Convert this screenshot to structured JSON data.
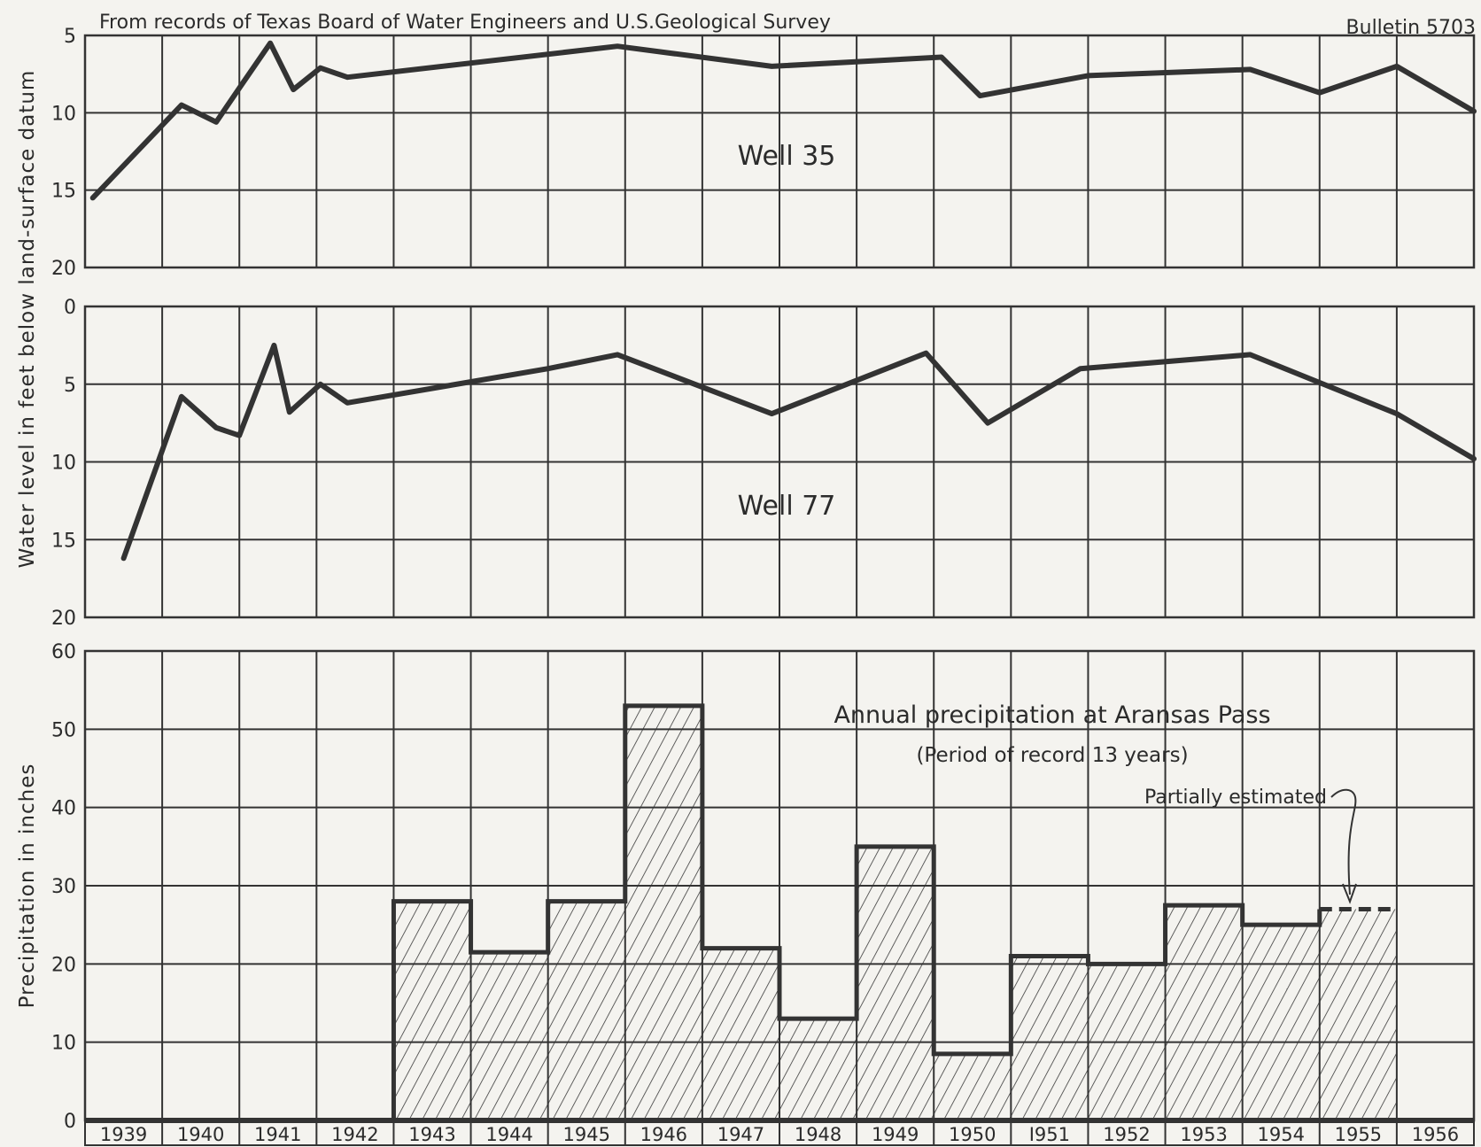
{
  "header": {
    "source": "From records of Texas Board of Water Engineers and U.S.Geological Survey",
    "bulletin": "Bulletin 5703"
  },
  "shared_ylabel_wells": "Water level in feet below land-surface datum",
  "chart_data": [
    {
      "type": "line",
      "title": "Well 35",
      "ylabel": "",
      "ylim": [
        20,
        5
      ],
      "yticks": [
        5,
        10,
        15,
        20
      ],
      "xlim": [
        1939,
        1957
      ],
      "grid": true,
      "points": [
        [
          1939.1,
          15.5
        ],
        [
          1940.25,
          9.5
        ],
        [
          1940.7,
          10.6
        ],
        [
          1941.0,
          8.4
        ],
        [
          1941.4,
          5.5
        ],
        [
          1941.7,
          8.5
        ],
        [
          1942.05,
          7.1
        ],
        [
          1942.4,
          7.7
        ],
        [
          1945.9,
          5.7
        ],
        [
          1947.9,
          7.0
        ],
        [
          1950.1,
          6.4
        ],
        [
          1950.6,
          8.9
        ],
        [
          1952.0,
          7.6
        ],
        [
          1954.1,
          7.2
        ],
        [
          1955.0,
          8.7
        ],
        [
          1956.0,
          7.0
        ],
        [
          1957.0,
          9.9
        ]
      ]
    },
    {
      "type": "line",
      "title": "Well 77",
      "ylabel": "",
      "ylim": [
        20,
        0
      ],
      "yticks": [
        0,
        5,
        10,
        15,
        20
      ],
      "xlim": [
        1939,
        1957
      ],
      "grid": true,
      "points": [
        [
          1939.5,
          16.2
        ],
        [
          1940.25,
          5.8
        ],
        [
          1940.7,
          7.8
        ],
        [
          1941.0,
          8.3
        ],
        [
          1941.45,
          2.5
        ],
        [
          1941.65,
          6.8
        ],
        [
          1942.05,
          5.0
        ],
        [
          1942.4,
          6.2
        ],
        [
          1945.0,
          4.0
        ],
        [
          1945.9,
          3.1
        ],
        [
          1947.9,
          6.9
        ],
        [
          1949.9,
          3.0
        ],
        [
          1950.7,
          7.5
        ],
        [
          1951.9,
          4.0
        ],
        [
          1954.1,
          3.1
        ],
        [
          1955.0,
          4.9
        ],
        [
          1956.0,
          6.9
        ],
        [
          1957.0,
          9.8
        ]
      ]
    },
    {
      "type": "bar",
      "title": "Annual precipitation at Aransas Pass",
      "subtitle": "(Period of record 13 years)",
      "annotation": "Partially estimated",
      "ylabel": "Precipitation in inches",
      "ylim": [
        0,
        60
      ],
      "yticks": [
        0,
        10,
        20,
        30,
        40,
        50,
        60
      ],
      "grid": true,
      "categories": [
        "1939",
        "1940",
        "1941",
        "1942",
        "1943",
        "1944",
        "1945",
        "1946",
        "1947",
        "1948",
        "1949",
        "1950",
        "1951",
        "1952",
        "1953",
        "1954",
        "1955",
        "1956"
      ],
      "category_labels": [
        "1939",
        "1940",
        "1941",
        "1942",
        "1943",
        "1944",
        "1945",
        "1946",
        "1947",
        "1948",
        "1949",
        "1950",
        "I951",
        "1952",
        "1953",
        "1954",
        "1955",
        "1956"
      ],
      "values": [
        0,
        0,
        0,
        0,
        28,
        21.5,
        28,
        53,
        22,
        13,
        35,
        8.5,
        21,
        20,
        27.5,
        25,
        27,
        0
      ],
      "estimated": [
        false,
        false,
        false,
        false,
        false,
        false,
        false,
        false,
        false,
        false,
        false,
        false,
        false,
        false,
        false,
        false,
        true,
        false
      ]
    }
  ]
}
